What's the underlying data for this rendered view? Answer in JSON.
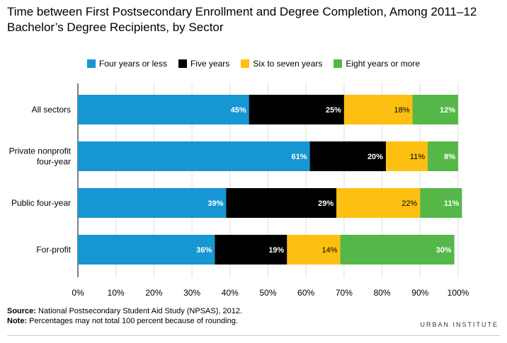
{
  "chart_data": {
    "type": "bar",
    "orientation": "horizontal",
    "stacked": true,
    "title": "Time between First Postsecondary Enrollment and Degree Completion, Among 2011–12 Bachelor’s Degree Recipients, by Sector",
    "categories": [
      "All sectors",
      "Private nonprofit four-year",
      "Public four-year",
      "For-profit"
    ],
    "series": [
      {
        "name": "Four years or less",
        "values": [
          45,
          61,
          39,
          36
        ],
        "labels": [
          "45%",
          "61%",
          "39%",
          "36%"
        ],
        "color": "#1696d2"
      },
      {
        "name": "Five years",
        "values": [
          25,
          20,
          29,
          19
        ],
        "labels": [
          "25%",
          "20%",
          "29%",
          "19%"
        ],
        "color": "#000000"
      },
      {
        "name": "Six to seven years",
        "values": [
          18,
          11,
          22,
          14
        ],
        "labels": [
          "18%",
          "11%",
          "22%",
          "14%"
        ],
        "color": "#fdbf11"
      },
      {
        "name": "Eight years or more",
        "values": [
          12,
          8,
          11,
          30
        ],
        "labels": [
          "12%",
          "8%",
          "11%",
          "30%"
        ],
        "color": "#55b748"
      }
    ],
    "xlim": [
      0,
      100
    ],
    "x_ticks": [
      "0%",
      "10%",
      "20%",
      "30%",
      "40%",
      "50%",
      "60%",
      "70%",
      "80%",
      "90%",
      "100%"
    ],
    "legend_position": "top"
  },
  "category_label_lines": [
    [
      "All sectors"
    ],
    [
      "Private nonprofit",
      "four-year"
    ],
    [
      "Public four-year"
    ],
    [
      "For-profit"
    ]
  ],
  "footer": {
    "source_label": "Source:",
    "source_text": " National Postsecondary Student Aid Study (NPSAS), 2012.",
    "note_label": "Note:",
    "note_text": " Percentages may not total 100 percent because of rounding.",
    "brand": "URBAN INSTITUTE"
  }
}
